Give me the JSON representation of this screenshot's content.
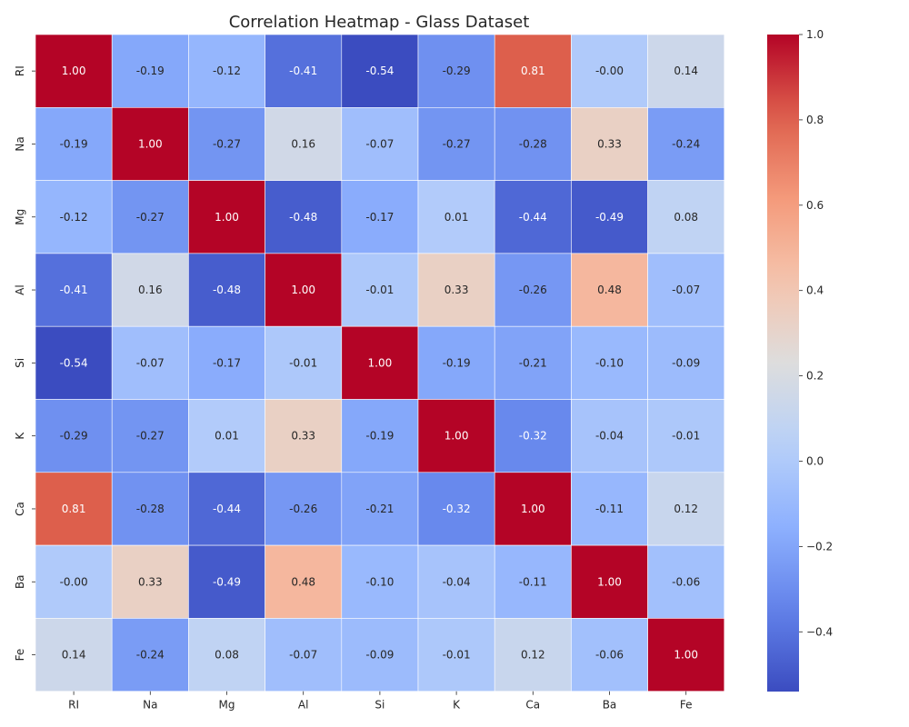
{
  "chart_data": {
    "type": "heatmap",
    "title": "Correlation Heatmap - Glass Dataset",
    "x_labels": [
      "RI",
      "Na",
      "Mg",
      "Al",
      "Si",
      "K",
      "Ca",
      "Ba",
      "Fe"
    ],
    "y_labels": [
      "RI",
      "Na",
      "Mg",
      "Al",
      "Si",
      "K",
      "Ca",
      "Ba",
      "Fe"
    ],
    "values": [
      [
        1.0,
        -0.19,
        -0.12,
        -0.41,
        -0.54,
        -0.29,
        0.81,
        -0.0,
        0.14
      ],
      [
        -0.19,
        1.0,
        -0.27,
        0.16,
        -0.07,
        -0.27,
        -0.28,
        0.33,
        -0.24
      ],
      [
        -0.12,
        -0.27,
        1.0,
        -0.48,
        -0.17,
        0.01,
        -0.44,
        -0.49,
        0.08
      ],
      [
        -0.41,
        0.16,
        -0.48,
        1.0,
        -0.01,
        0.33,
        -0.26,
        0.48,
        -0.07
      ],
      [
        -0.54,
        -0.07,
        -0.17,
        -0.01,
        1.0,
        -0.19,
        -0.21,
        -0.1,
        -0.09
      ],
      [
        -0.29,
        -0.27,
        0.01,
        0.33,
        -0.19,
        1.0,
        -0.32,
        -0.04,
        -0.01
      ],
      [
        0.81,
        -0.28,
        -0.44,
        -0.26,
        -0.21,
        -0.32,
        1.0,
        -0.11,
        0.12
      ],
      [
        -0.0,
        0.33,
        -0.49,
        0.48,
        -0.1,
        -0.04,
        -0.11,
        1.0,
        -0.06
      ],
      [
        0.14,
        -0.24,
        0.08,
        -0.07,
        -0.09,
        -0.01,
        0.12,
        -0.06,
        1.0
      ]
    ],
    "value_labels": [
      [
        "1.00",
        "-0.19",
        "-0.12",
        "-0.41",
        "-0.54",
        "-0.29",
        "0.81",
        "-0.00",
        "0.14"
      ],
      [
        "-0.19",
        "1.00",
        "-0.27",
        "0.16",
        "-0.07",
        "-0.27",
        "-0.28",
        "0.33",
        "-0.24"
      ],
      [
        "-0.12",
        "-0.27",
        "1.00",
        "-0.48",
        "-0.17",
        "0.01",
        "-0.44",
        "-0.49",
        "0.08"
      ],
      [
        "-0.41",
        "0.16",
        "-0.48",
        "1.00",
        "-0.01",
        "0.33",
        "-0.26",
        "0.48",
        "-0.07"
      ],
      [
        "-0.54",
        "-0.07",
        "-0.17",
        "-0.01",
        "1.00",
        "-0.19",
        "-0.21",
        "-0.10",
        "-0.09"
      ],
      [
        "-0.29",
        "-0.27",
        "0.01",
        "0.33",
        "-0.19",
        "1.00",
        "-0.32",
        "-0.04",
        "-0.01"
      ],
      [
        "0.81",
        "-0.28",
        "-0.44",
        "-0.26",
        "-0.21",
        "-0.32",
        "1.00",
        "-0.11",
        "0.12"
      ],
      [
        "-0.00",
        "0.33",
        "-0.49",
        "0.48",
        "-0.10",
        "-0.04",
        "-0.11",
        "1.00",
        "-0.06"
      ],
      [
        "0.14",
        "-0.24",
        "0.08",
        "-0.07",
        "-0.09",
        "-0.01",
        "0.12",
        "-0.06",
        "1.00"
      ]
    ],
    "colormap": "coolwarm",
    "color_range": [
      -0.54,
      1.0
    ],
    "colorbar_ticks": [
      1.0,
      0.8,
      0.6,
      0.4,
      0.2,
      0.0,
      -0.2,
      -0.4
    ],
    "colorbar_tick_labels": [
      "1.0",
      "0.8",
      "0.6",
      "0.4",
      "0.2",
      "0.0",
      "−0.2",
      "−0.4"
    ],
    "grid": false,
    "legend": "colorbar-right",
    "cell_border_color": "#ffffff"
  }
}
